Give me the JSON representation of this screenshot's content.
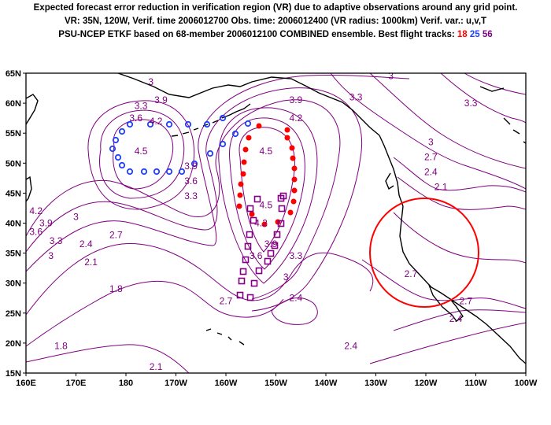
{
  "header": {
    "line1": "Expected forecast error reduction in verification region (VR) due to adaptive observations around any grid point.",
    "line2": "VR: 35N, 120W, Verif. time 2006012700   Obs. time: 2006012400 (VR radius: 1000km)   Verif. var.: u,v,T",
    "line3_prefix": "PSU-NCEP ETKF based on 68-member 2006012100 COMBINED ensemble.   Best flight tracks: ",
    "tracks": [
      "18",
      "25",
      "56"
    ]
  },
  "map": {
    "y_axis_labels": [
      "65N",
      "60N",
      "55N",
      "50N",
      "45N",
      "40N",
      "35N",
      "30N",
      "25N",
      "20N",
      "15N"
    ],
    "x_axis_labels": [
      "160E",
      "170E",
      "180",
      "170W",
      "160W",
      "150W",
      "140W",
      "130W",
      "120W",
      "110W",
      "100W"
    ],
    "contour_labels": [
      {
        "text": "4.5",
        "lon": 183,
        "lat": 51.5
      },
      {
        "text": "4.2",
        "lon": 186,
        "lat": 56.5
      },
      {
        "text": "3.9",
        "lon": 187,
        "lat": 60
      },
      {
        "text": "3.9",
        "lon": 193,
        "lat": 49
      },
      {
        "text": "3.6",
        "lon": 193,
        "lat": 46.5
      },
      {
        "text": "3.3",
        "lon": 193,
        "lat": 44
      },
      {
        "text": "3",
        "lon": 185,
        "lat": 63
      },
      {
        "text": "3.3",
        "lon": 183,
        "lat": 59
      },
      {
        "text": "3.6",
        "lon": 182,
        "lat": 57
      },
      {
        "text": "4.5",
        "lon": 208,
        "lat": 51.5
      },
      {
        "text": "4.5",
        "lon": 208,
        "lat": 42.5
      },
      {
        "text": "4.2",
        "lon": 207,
        "lat": 39.5
      },
      {
        "text": "3.9",
        "lon": 209,
        "lat": 36
      },
      {
        "text": "3.6",
        "lon": 206,
        "lat": 34
      },
      {
        "text": "3.9",
        "lon": 214,
        "lat": 60
      },
      {
        "text": "4.2",
        "lon": 214,
        "lat": 57
      },
      {
        "text": "3.3",
        "lon": 226,
        "lat": 60.5
      },
      {
        "text": "3.3",
        "lon": 214,
        "lat": 34
      },
      {
        "text": "3",
        "lon": 212,
        "lat": 30.5
      },
      {
        "text": "3",
        "lon": 233,
        "lat": 64
      },
      {
        "text": "3.3",
        "lon": 249,
        "lat": 59.5
      },
      {
        "text": "3",
        "lon": 241,
        "lat": 53
      },
      {
        "text": "2.7",
        "lon": 241,
        "lat": 50.5
      },
      {
        "text": "2.4",
        "lon": 241,
        "lat": 48
      },
      {
        "text": "2.1",
        "lon": 243,
        "lat": 45.5
      },
      {
        "text": "2.7",
        "lon": 237,
        "lat": 31
      },
      {
        "text": "2.7",
        "lon": 248,
        "lat": 26.5
      },
      {
        "text": "2.4",
        "lon": 246,
        "lat": 23.5
      },
      {
        "text": "2.4",
        "lon": 225,
        "lat": 19
      },
      {
        "text": "3",
        "lon": 170,
        "lat": 40.5
      },
      {
        "text": "4.2",
        "lon": 162,
        "lat": 41.5
      },
      {
        "text": "3.9",
        "lon": 164,
        "lat": 39.5
      },
      {
        "text": "3.6",
        "lon": 162,
        "lat": 38
      },
      {
        "text": "3.3",
        "lon": 166,
        "lat": 36.5
      },
      {
        "text": "3",
        "lon": 165,
        "lat": 34
      },
      {
        "text": "2.7",
        "lon": 178,
        "lat": 37.5
      },
      {
        "text": "2.4",
        "lon": 172,
        "lat": 36
      },
      {
        "text": "2.1",
        "lon": 173,
        "lat": 33
      },
      {
        "text": "1.8",
        "lon": 178,
        "lat": 28.5
      },
      {
        "text": "1.8",
        "lon": 167,
        "lat": 19
      },
      {
        "text": "2.7",
        "lon": 200,
        "lat": 26.5
      },
      {
        "text": "2.4",
        "lon": 214,
        "lat": 27
      },
      {
        "text": "2.1",
        "lon": 186,
        "lat": 15.5
      }
    ]
  },
  "colors": {
    "contour": "#800080",
    "track_red": "#ff0000",
    "track_blue": "#2040ff",
    "track_purple": "#800080",
    "circle": "#ff0000",
    "coast": "#000000"
  }
}
